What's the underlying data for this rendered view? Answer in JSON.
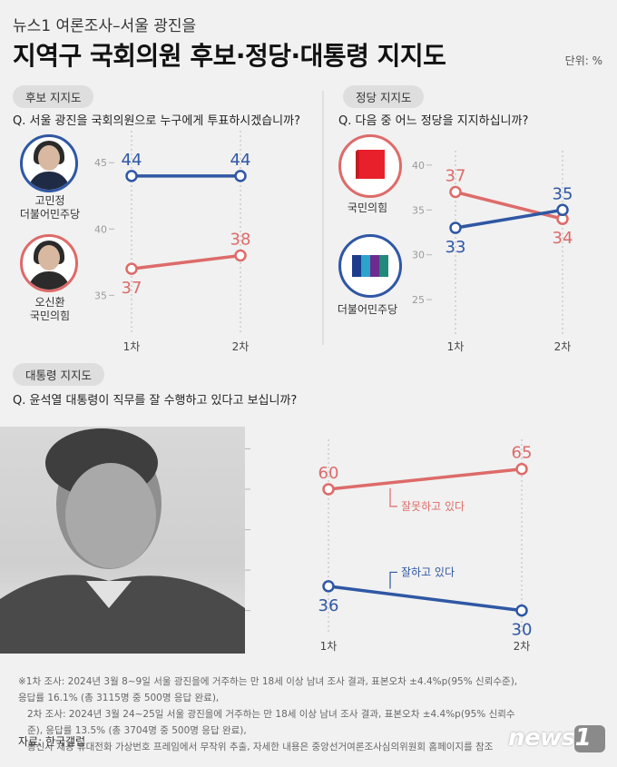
{
  "header": {
    "kicker": "뉴스1 여론조사–서울 광진을",
    "title": "지역구 국회의원 후보·정당·대통령 지지도",
    "unit": "단위: %"
  },
  "colors": {
    "blue": "#2f57a4",
    "red": "#dd6b69",
    "text_gray": "#888888"
  },
  "candidates_section": {
    "label": "후보 지지도",
    "question": "Q. 서울 광진을 국회의원으로 누구에게 투표하시겠습니까?",
    "candidates": [
      {
        "name": "고민정",
        "party": "더불어민주당",
        "icon": "candidate-portrait-icon"
      },
      {
        "name": "오신환",
        "party": "국민의힘",
        "icon": "candidate-portrait-icon"
      }
    ]
  },
  "party_section": {
    "label": "정당 지지도",
    "question": "Q. 다음 중 어느 정당을 지지하십니까?",
    "parties": [
      {
        "name": "국민의힘",
        "icon": "ppp-logo-icon"
      },
      {
        "name": "더불어민주당",
        "icon": "democratic-party-logo-icon"
      }
    ]
  },
  "president_section": {
    "label": "대통령 지지도",
    "question": "Q. 윤석열 대통령이 직무를 잘 수행하고 있다고 보십니까?",
    "photo_icon": "president-photo-icon"
  },
  "chart_data": [
    {
      "type": "line",
      "x": [
        "1차",
        "2차"
      ],
      "ylim": [
        34,
        47
      ],
      "yticks": [
        35,
        40,
        45
      ],
      "series": [
        {
          "name": "고민정",
          "color": "#2f57a4",
          "values": [
            44,
            44
          ],
          "value_labels": [
            "44",
            "44"
          ]
        },
        {
          "name": "오신환",
          "color": "#dd6b69",
          "values": [
            37,
            38
          ],
          "value_labels": [
            "37",
            "38"
          ]
        }
      ]
    },
    {
      "type": "line",
      "x": [
        "1차",
        "2차"
      ],
      "ylim": [
        24,
        41
      ],
      "yticks": [
        25,
        30,
        35,
        40
      ],
      "series": [
        {
          "name": "국민의힘",
          "color": "#dd6b69",
          "values": [
            37,
            34
          ],
          "value_labels": [
            "37",
            "34"
          ]
        },
        {
          "name": "더불어민주당",
          "color": "#2f57a4",
          "values": [
            33,
            35
          ],
          "value_labels": [
            "33",
            "35"
          ]
        }
      ]
    },
    {
      "type": "line",
      "x": [
        "1차",
        "2차"
      ],
      "ylim": [
        27,
        71
      ],
      "yticks": [
        30,
        40,
        50,
        60,
        70
      ],
      "series": [
        {
          "name": "잘못하고 있다",
          "color": "#dd6b69",
          "values": [
            60,
            65
          ],
          "value_labels": [
            "60",
            "65"
          ]
        },
        {
          "name": "잘하고 있다",
          "color": "#2f57a4",
          "values": [
            36,
            30
          ],
          "value_labels": [
            "36",
            "30"
          ]
        }
      ]
    }
  ],
  "footnotes": [
    "※1차 조사: 2024년 3월 8~9일 서울 광진을에 거주하는 만 18세 이상 남녀 조사 결과, 표본오차 ±4.4%p(95% 신뢰수준), 응답률 16.1% (총 3115명 중 500명 응답 완료),",
    "2차 조사: 2024년 3월 24~25일 서울 광진을에 거주하는 만 18세 이상 남녀 조사 결과, 표본오차 ±4.4%p(95% 신뢰수준), 응답률 13.5% (총 3704명 중 500명 응답 완료),",
    "통신사 제공 휴대전화 가상번호 프레임에서 무작위 추출, 자세한 내용은 중앙선거여론조사심의위원회 홈페이지를 참조"
  ],
  "source": "자료: 한국갤럽",
  "brand": "news1"
}
